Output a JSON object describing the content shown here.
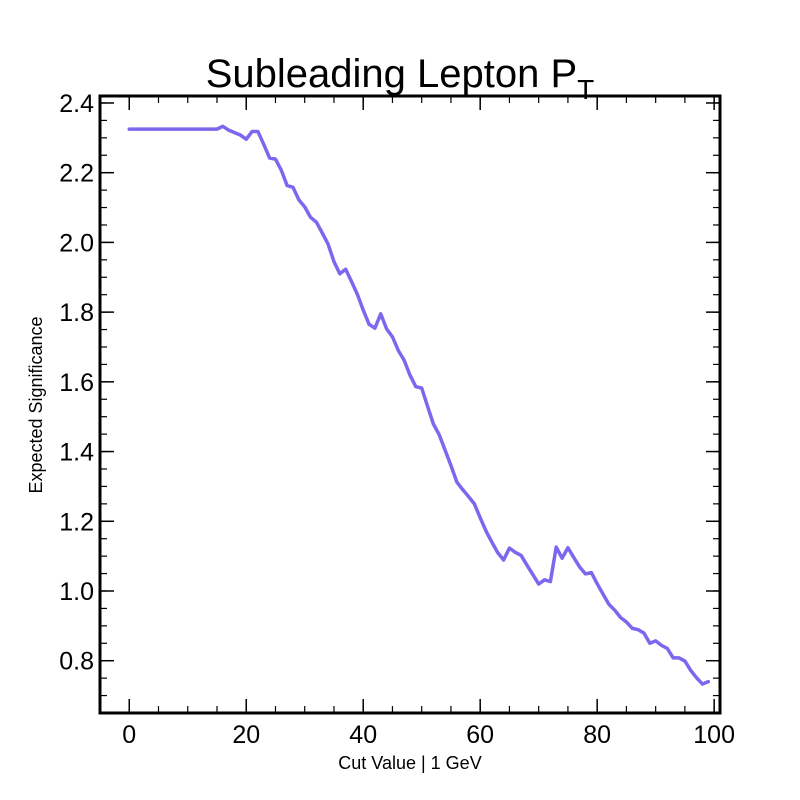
{
  "chart_data": {
    "type": "line",
    "title": "Subleading Lepton P",
    "title_subscript": "T",
    "xlabel": "Cut Value | 1 GeV",
    "ylabel": "Expected Significance",
    "xlim": [
      -5,
      101
    ],
    "ylim": [
      0.65,
      2.42
    ],
    "xticks": [
      0,
      20,
      40,
      60,
      80,
      100
    ],
    "yticks": [
      0.8,
      1.0,
      1.2,
      1.4,
      1.6,
      1.8,
      2.0,
      2.2,
      2.4
    ],
    "xtick_labels": [
      "0",
      "20",
      "40",
      "60",
      "80",
      "100"
    ],
    "ytick_labels": [
      "0.8",
      "1.0",
      "1.2",
      "1.4",
      "1.6",
      "1.8",
      "2.0",
      "2.2",
      "2.4"
    ],
    "x_minor_step": 5,
    "y_minor_step": 0.05,
    "grid": false,
    "series": [
      {
        "color": "#7b68ee",
        "x": [
          0,
          1,
          2,
          3,
          4,
          5,
          6,
          7,
          8,
          9,
          10,
          11,
          12,
          13,
          14,
          15,
          16,
          17,
          18,
          19,
          20,
          21,
          22,
          23,
          24,
          25,
          26,
          27,
          28,
          29,
          30,
          31,
          32,
          33,
          34,
          35,
          36,
          37,
          38,
          39,
          40,
          41,
          42,
          43,
          44,
          45,
          46,
          47,
          48,
          49,
          50,
          51,
          52,
          53,
          54,
          55,
          56,
          57,
          58,
          59,
          60,
          61,
          62,
          63,
          64,
          65,
          66,
          67,
          68,
          69,
          70,
          71,
          72,
          73,
          74,
          75,
          76,
          77,
          78,
          79,
          80,
          81,
          82,
          83,
          84,
          85,
          86,
          87,
          88,
          89,
          90,
          91,
          92,
          93,
          94,
          95,
          96,
          97,
          98,
          99
        ],
        "y": [
          2.325,
          2.325,
          2.325,
          2.325,
          2.325,
          2.325,
          2.325,
          2.325,
          2.325,
          2.325,
          2.325,
          2.325,
          2.325,
          2.325,
          2.325,
          2.325,
          2.333,
          2.322,
          2.315,
          2.308,
          2.296,
          2.318,
          2.318,
          2.281,
          2.242,
          2.239,
          2.207,
          2.163,
          2.158,
          2.122,
          2.102,
          2.072,
          2.058,
          2.027,
          1.995,
          1.945,
          1.91,
          1.923,
          1.888,
          1.851,
          1.806,
          1.765,
          1.754,
          1.795,
          1.752,
          1.729,
          1.69,
          1.662,
          1.619,
          1.586,
          1.582,
          1.53,
          1.479,
          1.448,
          1.404,
          1.36,
          1.313,
          1.291,
          1.271,
          1.25,
          1.21,
          1.172,
          1.14,
          1.11,
          1.089,
          1.123,
          1.111,
          1.102,
          1.074,
          1.047,
          1.02,
          1.032,
          1.027,
          1.126,
          1.094,
          1.124,
          1.096,
          1.069,
          1.049,
          1.053,
          1.021,
          0.991,
          0.962,
          0.945,
          0.924,
          0.911,
          0.893,
          0.889,
          0.879,
          0.85,
          0.857,
          0.844,
          0.835,
          0.808,
          0.808,
          0.799,
          0.772,
          0.751,
          0.733,
          0.74
        ]
      }
    ]
  }
}
